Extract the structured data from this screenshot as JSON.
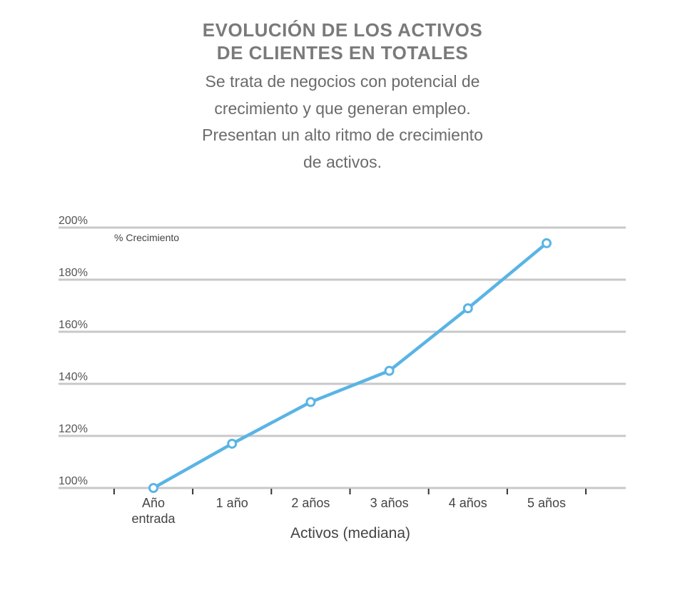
{
  "title_lines": [
    "EVOLUCIÓN DE LOS ACTIVOS",
    "DE CLIENTES EN TOTALES"
  ],
  "subtitle_lines": [
    "Se trata de negocios con potencial de",
    "crecimiento y que generan empleo.",
    "Presentan un alto ritmo de crecimiento",
    "de activos."
  ],
  "colors": {
    "line": "#5ab4e5",
    "grid": "#c8c8c8",
    "title": "#7a7a7a",
    "text": "#444444"
  },
  "chart_data": {
    "type": "line",
    "title": "EVOLUCIÓN DE LOS ACTIVOS DE CLIENTES EN TOTALES",
    "xlabel": "Activos (mediana)",
    "ylabel": "% Crecimiento",
    "categories": [
      [
        "Año",
        "entrada"
      ],
      [
        "1 año"
      ],
      [
        "2 años"
      ],
      [
        "3 años"
      ],
      [
        "4 años"
      ],
      [
        "5 años"
      ]
    ],
    "ylim": [
      100,
      200
    ],
    "yticks": [
      100,
      120,
      140,
      160,
      180,
      200
    ],
    "ytick_labels": [
      "100%",
      "120%",
      "140%",
      "160%",
      "180%",
      "200%"
    ],
    "grid": true,
    "series": [
      {
        "values": [
          100,
          117,
          133,
          145,
          169,
          194
        ]
      }
    ]
  }
}
